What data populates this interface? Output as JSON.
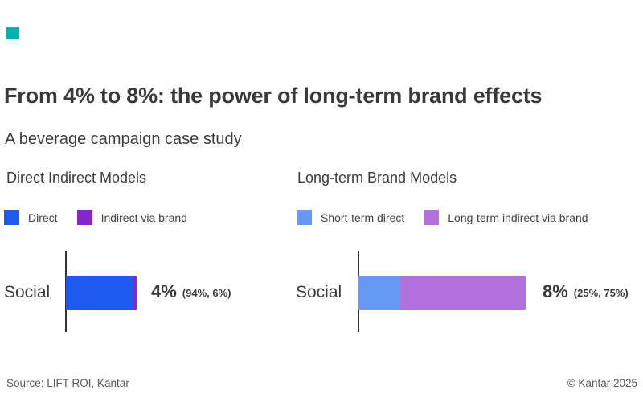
{
  "logo": {
    "color": "#00b2a9"
  },
  "header": {
    "title": "From 4% to 8%: the power of long-term brand effects",
    "subtitle": "A beverage campaign case study"
  },
  "charts": [
    {
      "heading": "Direct Indirect Models",
      "legend": [
        {
          "label": "Direct",
          "color": "#1e5af0"
        },
        {
          "label": "Indirect via brand",
          "color": "#8527c9"
        }
      ],
      "category": "Social",
      "value": "4%",
      "value_detail": "(94%, 6%)",
      "bar": {
        "segments": [
          {
            "name": "Direct",
            "color": "#1e5af0",
            "width": "94%"
          },
          {
            "name": "Indirect via brand",
            "color": "#8527c9",
            "width": "6%"
          }
        ]
      }
    },
    {
      "heading": "Long-term Brand Models",
      "legend": [
        {
          "label": "Short-term direct",
          "color": "#6699f5"
        },
        {
          "label": "Long-term indirect via brand",
          "color": "#b371dd"
        }
      ],
      "category": "Social",
      "value": "8%",
      "value_detail": "(25%, 75%)",
      "bar": {
        "segments": [
          {
            "name": "Short-term direct",
            "color": "#6699f5",
            "width": "25%"
          },
          {
            "name": "Long-term indirect via brand",
            "color": "#b371dd",
            "width": "75%"
          }
        ]
      }
    }
  ],
  "footer": {
    "source": "Source: LIFT ROI, Kantar",
    "copyright": "© Kantar 2025"
  },
  "chart_data": [
    {
      "type": "bar",
      "orientation": "horizontal",
      "stacked": true,
      "title": "Direct Indirect Models",
      "categories": [
        "Social"
      ],
      "series": [
        {
          "name": "Direct",
          "values": [
            3.76
          ],
          "percent_of_total": 94,
          "color": "#1e5af0"
        },
        {
          "name": "Indirect via brand",
          "values": [
            0.24
          ],
          "percent_of_total": 6,
          "color": "#8527c9"
        }
      ],
      "total_percent": 4,
      "annotations": [
        "4% (94%, 6%)"
      ],
      "xlabel": "",
      "ylabel": "",
      "grid": false,
      "legend_position": "top"
    },
    {
      "type": "bar",
      "orientation": "horizontal",
      "stacked": true,
      "title": "Long-term Brand Models",
      "categories": [
        "Social"
      ],
      "series": [
        {
          "name": "Short-term direct",
          "values": [
            2.0
          ],
          "percent_of_total": 25,
          "color": "#6699f5"
        },
        {
          "name": "Long-term indirect via brand",
          "values": [
            6.0
          ],
          "percent_of_total": 75,
          "color": "#b371dd"
        }
      ],
      "total_percent": 8,
      "annotations": [
        "8% (25%, 75%)"
      ],
      "xlabel": "",
      "ylabel": "",
      "grid": false,
      "legend_position": "top"
    }
  ]
}
